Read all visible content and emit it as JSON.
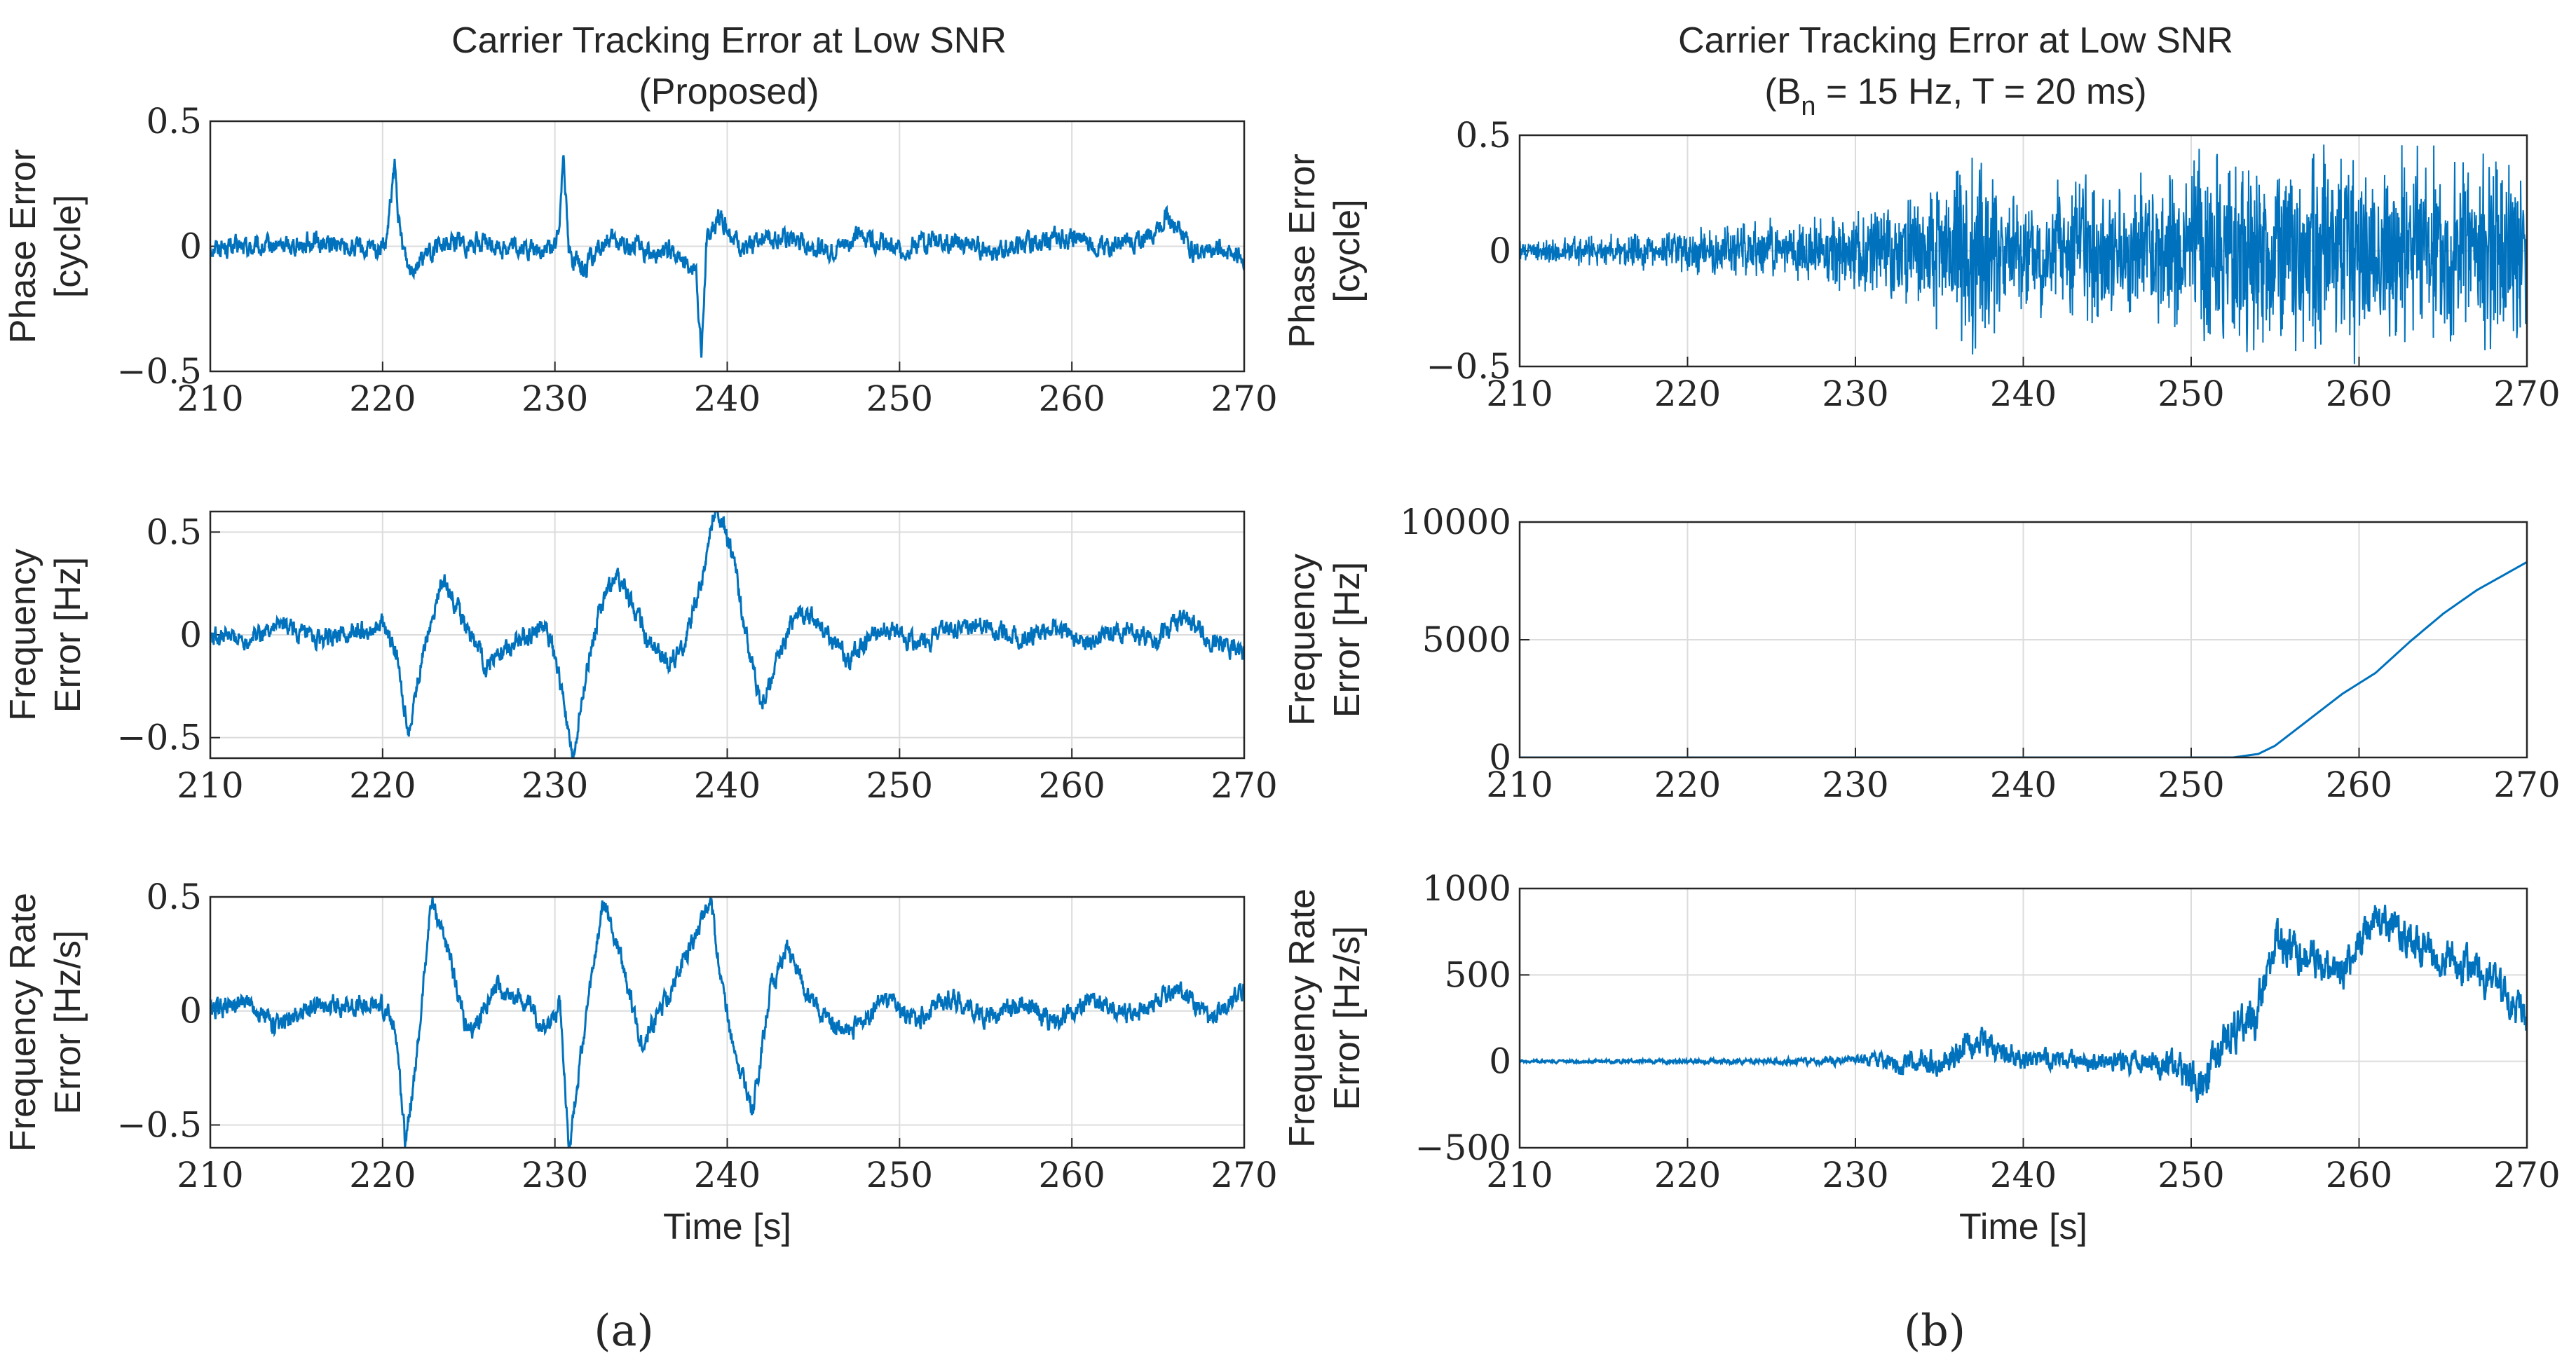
{
  "figure": {
    "left_title": [
      "Carrier Tracking Error at Low SNR",
      "(Proposed)"
    ],
    "right_title": {
      "line1": "Carrier Tracking Error at Low SNR",
      "line2_pre": "(B",
      "line2_sub": "n",
      "line2_post": " = 15 Hz, T = 20 ms)"
    },
    "xlabel": "Time [s]",
    "subfigure_labels": [
      "(a)",
      "(b)"
    ],
    "line_color": "#0072bd"
  },
  "chart_data": [
    {
      "id": "a1",
      "type": "line",
      "title": "",
      "xlabel": "",
      "ylabel": [
        "Phase Error",
        "[cycle]"
      ],
      "xlim": [
        210,
        270
      ],
      "ylim": [
        -0.5,
        0.5
      ],
      "xticks": [
        210,
        220,
        230,
        240,
        250,
        260,
        270
      ],
      "yticks": [
        -0.5,
        0,
        0.5
      ],
      "ytick_labels": [
        "−0.5",
        "0",
        "0.5"
      ],
      "grid": true,
      "x": [
        210,
        213,
        216,
        219,
        220.2,
        220.7,
        221,
        221.5,
        222.5,
        224,
        227,
        229.5,
        230.2,
        230.5,
        230.8,
        231.5,
        233,
        234.5,
        235.5,
        236.5,
        237.5,
        238.2,
        238.5,
        238.8,
        239.5,
        240,
        241,
        242,
        244,
        246,
        248,
        250,
        252,
        254,
        256,
        258,
        260,
        262,
        264,
        265.5,
        266.2,
        267,
        268.5,
        270
      ],
      "y": [
        0,
        -0.01,
        0.02,
        -0.02,
        0,
        0.32,
        0.05,
        -0.08,
        -0.04,
        0.02,
        0,
        -0.02,
        0.03,
        0.4,
        -0.02,
        -0.1,
        0.02,
        0,
        -0.03,
        -0.02,
        -0.05,
        -0.1,
        -0.45,
        0.02,
        0.12,
        0.08,
        -0.02,
        0.04,
        0.02,
        -0.02,
        0.05,
        -0.02,
        0.03,
        0,
        -0.02,
        0.02,
        0.03,
        0,
        0.02,
        0.12,
        0.08,
        -0.02,
        0,
        -0.05
      ]
    },
    {
      "id": "a2",
      "type": "line",
      "title": "",
      "xlabel": "",
      "ylabel": [
        "Frequency",
        "Error [Hz]"
      ],
      "xlim": [
        210,
        270
      ],
      "ylim": [
        -0.6,
        0.6
      ],
      "xticks": [
        210,
        220,
        230,
        240,
        250,
        260,
        270
      ],
      "yticks": [
        -0.5,
        0,
        0.5
      ],
      "ytick_labels": [
        "−0.5",
        "0",
        "0.5"
      ],
      "grid": true,
      "x": [
        210,
        212,
        214,
        216,
        218,
        220,
        220.8,
        221.5,
        222.3,
        223.5,
        224.5,
        226,
        228,
        229.5,
        230.5,
        231,
        231.5,
        232.5,
        233.5,
        234.5,
        235.5,
        236.5,
        237.5,
        238.5,
        239.3,
        240.3,
        241.2,
        242,
        243,
        244,
        245.5,
        247,
        249,
        251,
        253,
        255,
        257,
        259,
        261,
        263,
        265,
        266.5,
        268,
        270
      ],
      "y": [
        0,
        -0.02,
        0.05,
        -0.03,
        0,
        0.05,
        -0.1,
        -0.48,
        -0.1,
        0.28,
        0.1,
        -0.15,
        -0.02,
        0.05,
        -0.3,
        -0.62,
        -0.35,
        0.1,
        0.3,
        0.15,
        -0.05,
        -0.15,
        -0.05,
        0.25,
        0.62,
        0.4,
        -0.05,
        -0.35,
        -0.1,
        0.12,
        0.05,
        -0.12,
        0.05,
        -0.05,
        0.02,
        0.05,
        -0.02,
        0.04,
        -0.03,
        0.02,
        -0.02,
        0.1,
        -0.03,
        -0.08
      ]
    },
    {
      "id": "a3",
      "type": "line",
      "title": "",
      "xlabel": "Time [s]",
      "ylabel": [
        "Frequency Rate",
        "Error [Hz/s]"
      ],
      "xlim": [
        210,
        270
      ],
      "ylim": [
        -0.6,
        0.5
      ],
      "xticks": [
        210,
        220,
        230,
        240,
        250,
        260,
        270
      ],
      "yticks": [
        -0.5,
        0,
        0.5
      ],
      "ytick_labels": [
        "−0.5",
        "0",
        "0.5"
      ],
      "grid": true,
      "x": [
        210,
        212,
        214,
        216,
        218,
        220,
        220.8,
        221.3,
        222,
        222.8,
        223.5,
        225,
        226.5,
        228,
        229.5,
        230.3,
        230.8,
        231.5,
        232.8,
        233.8,
        235,
        236.5,
        238,
        239,
        239.8,
        240.5,
        241.5,
        242.5,
        243.5,
        245,
        247,
        249,
        251,
        253,
        255,
        257,
        259,
        261,
        263,
        265,
        266.5,
        268,
        270
      ],
      "y": [
        0,
        0.05,
        -0.08,
        0.03,
        0.02,
        0.02,
        -0.1,
        -0.57,
        -0.2,
        0.48,
        0.35,
        -0.12,
        0.1,
        0.05,
        -0.08,
        0.05,
        -0.6,
        -0.2,
        0.48,
        0.25,
        -0.15,
        0.05,
        0.3,
        0.5,
        0.05,
        -0.2,
        -0.43,
        0.1,
        0.27,
        0.02,
        -0.1,
        0.05,
        -0.04,
        0.06,
        -0.02,
        0.03,
        -0.05,
        0.04,
        -0.02,
        0.05,
        0.1,
        -0.04,
        0.1
      ]
    },
    {
      "id": "b1",
      "type": "line",
      "title": "",
      "xlabel": "",
      "ylabel": [
        "Phase Error",
        "[cycle]"
      ],
      "xlim": [
        210,
        270
      ],
      "ylim": [
        -0.5,
        0.5
      ],
      "xticks": [
        210,
        220,
        230,
        240,
        250,
        260,
        270
      ],
      "yticks": [
        -0.5,
        0,
        0.5
      ],
      "ytick_labels": [
        "−0.5",
        "0",
        "0.5"
      ],
      "grid": true,
      "x": [
        210,
        215,
        220,
        225,
        230,
        234,
        237,
        240,
        245,
        249,
        250,
        255,
        260,
        265,
        270
      ],
      "envelope": [
        0.05,
        0.08,
        0.12,
        0.15,
        0.18,
        0.3,
        0.5,
        0.32,
        0.35,
        0.4,
        0.5,
        0.5,
        0.5,
        0.5,
        0.5
      ]
    },
    {
      "id": "b2",
      "type": "line",
      "title": "",
      "xlabel": "",
      "ylabel": [
        "Frequency",
        "Error [Hz]"
      ],
      "xlim": [
        210,
        270
      ],
      "ylim": [
        0,
        10000
      ],
      "xticks": [
        210,
        220,
        230,
        240,
        250,
        260,
        270
      ],
      "yticks": [
        0,
        5000,
        10000
      ],
      "ytick_labels": [
        "0",
        "5000",
        "10000"
      ],
      "grid": true,
      "x": [
        210,
        250,
        252,
        253,
        254,
        255,
        257,
        259,
        261,
        263,
        265,
        267,
        269,
        270
      ],
      "y": [
        0,
        0,
        -50,
        50,
        150,
        500,
        1600,
        2700,
        3600,
        4900,
        6100,
        7100,
        7900,
        8300
      ]
    },
    {
      "id": "b3",
      "type": "line",
      "title": "",
      "xlabel": "Time [s]",
      "ylabel": [
        "Frequency Rate",
        "Error [Hz/s]"
      ],
      "xlim": [
        210,
        270
      ],
      "ylim": [
        -500,
        1000
      ],
      "xticks": [
        210,
        220,
        230,
        240,
        250,
        260,
        270
      ],
      "yticks": [
        -500,
        0,
        500,
        1000
      ],
      "ytick_labels": [
        "−500",
        "0",
        "500",
        "1000"
      ],
      "grid": true,
      "x": [
        210,
        225,
        230,
        235,
        237.5,
        240,
        245,
        249,
        250.5,
        252,
        254,
        255,
        257,
        259,
        261,
        263,
        265,
        267,
        268.5,
        270
      ],
      "y": [
        0,
        0,
        5,
        -20,
        130,
        10,
        0,
        -20,
        -150,
        100,
        300,
        700,
        600,
        500,
        850,
        700,
        600,
        500,
        400,
        250
      ],
      "noise": [
        5,
        10,
        20,
        60,
        70,
        40,
        40,
        60,
        90,
        90,
        100,
        80,
        80,
        80,
        80,
        80,
        80,
        80,
        80,
        80
      ]
    }
  ]
}
